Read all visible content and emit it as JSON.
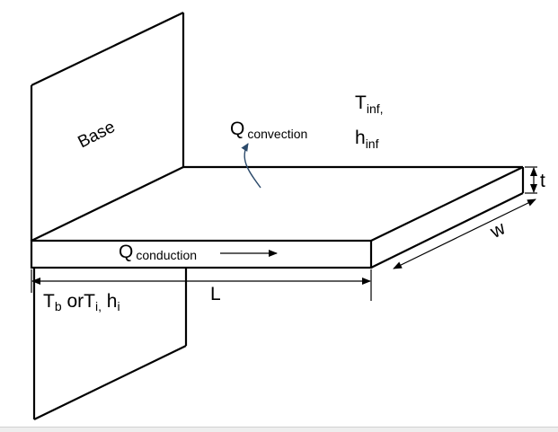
{
  "labels": {
    "base": "Base",
    "q_convection": {
      "main": "Q",
      "sub": "convection"
    },
    "t_inf": {
      "main": "T",
      "sub": "inf,"
    },
    "h_inf": {
      "main": "h",
      "sub": "inf"
    },
    "thickness": "t",
    "width": "w",
    "q_conduction": {
      "main": "Q",
      "sub": "conduction"
    },
    "length": "L",
    "base_condition": {
      "t_main": "T",
      "t_sub": "b",
      "or_t_main": " orT",
      "or_t_sub": "i,",
      "h_main": " h",
      "h_sub": "i"
    }
  },
  "colors": {
    "stroke": "#000000",
    "convection_arrow": "#2c4a6b"
  }
}
